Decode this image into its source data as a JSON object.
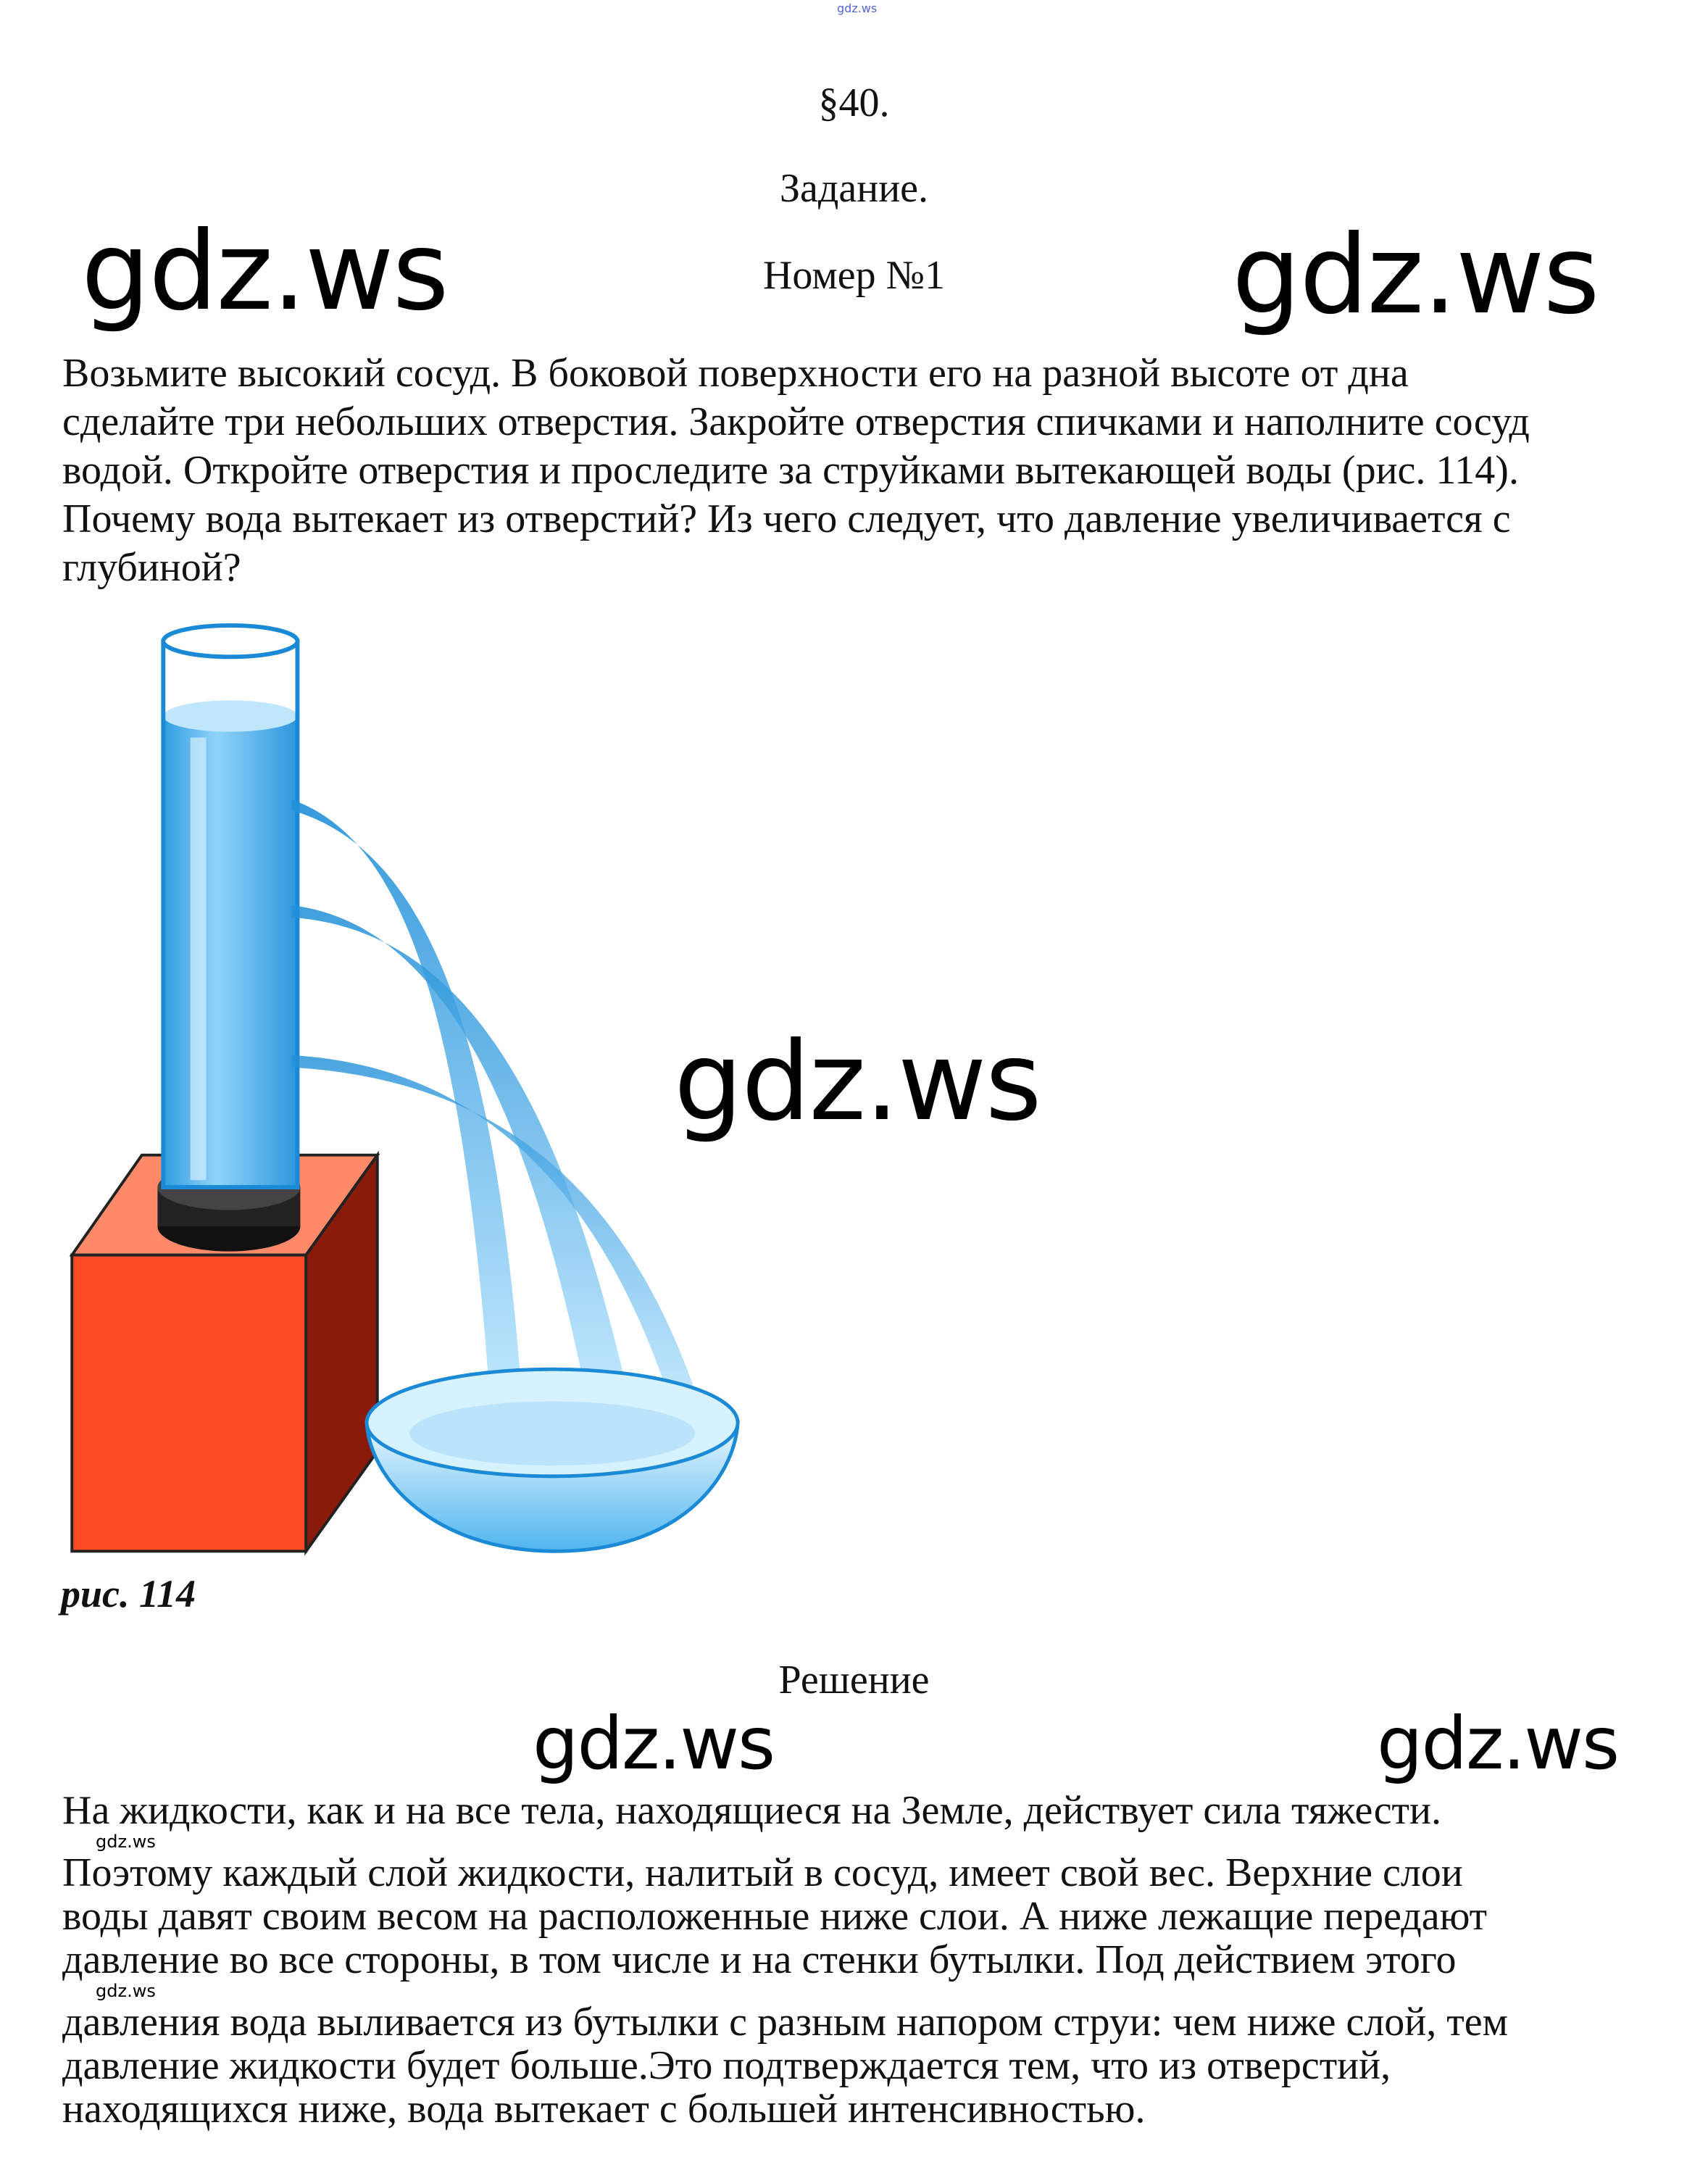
{
  "header": {
    "top_watermark": "gdz.ws",
    "section": "§40.",
    "task_label": "Задание.",
    "number_label": "Номер №1"
  },
  "watermarks": {
    "text": "gdz.ws"
  },
  "task": {
    "lines": [
      "Возьмите высокий сосуд. В боковой поверхности его на разной высоте от дна",
      "сделайте три небольших отверстия. Закройте отверстия спичками и наполните сосуд",
      "водой. Откройте отверстия и проследите за струйками вытекающей воды (рис. 114).",
      "Почему вода вытекает из отверстий? Из чего следует, что давление увеличивается с",
      "глубиной?"
    ]
  },
  "figure": {
    "caption": "рис. 114",
    "colors": {
      "water": "#3aa7e8",
      "block": "#ff4a26",
      "base": "#1a1a1a"
    }
  },
  "solution": {
    "title": "Решение",
    "lines": [
      "На жидкости, как и на все тела, находящиеся на Земле, действует сила тяжести.",
      "Поэтому каждый слой жидкости, налитый в сосуд, имеет свой вес. Верхние слои",
      "воды давят своим весом на расположенные ниже слои. А ниже лежащие передают",
      "давление во все стороны, в том числе и на стенки бутылки. Под действием этого",
      "давления вода выливается из бутылки с разным напором струи: чем ниже слой, тем",
      "давление жидкости будет больше.Это подтверждается тем, что из отверстий,",
      "находящихся ниже, вода вытекает с большей интенсивностью."
    ]
  }
}
